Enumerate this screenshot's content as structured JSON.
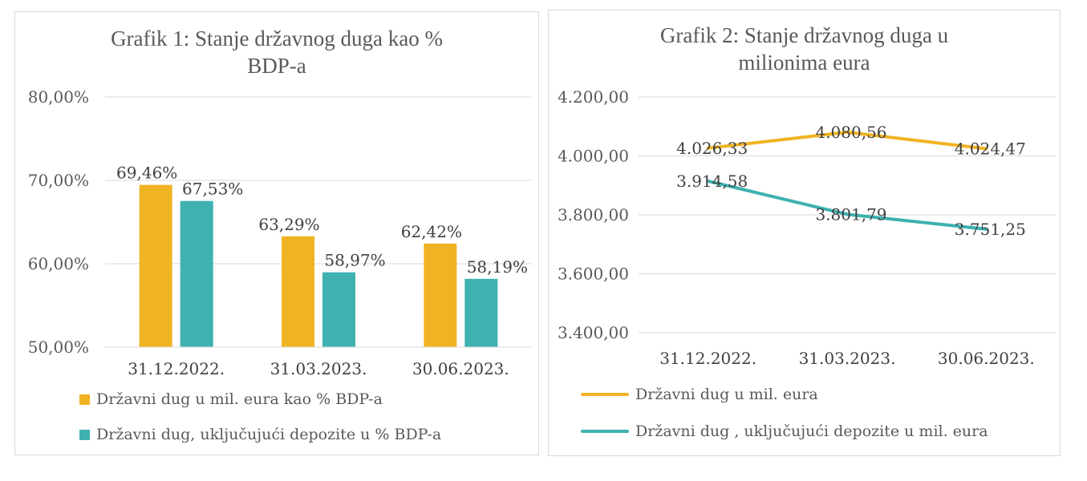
{
  "chart_data": [
    {
      "type": "bar",
      "title": "Grafik 1: Stanje državnog duga kao % BDP-a",
      "title_lines": [
        "Grafik 1: Stanje državnog duga kao %",
        "BDP-a"
      ],
      "categories": [
        "31.12.2022.",
        "31.03.2023.",
        "30.06.2023."
      ],
      "ylim": [
        50,
        80
      ],
      "yticks": [
        50,
        60,
        70,
        80
      ],
      "ytick_labels": [
        "50,00%",
        "60,00%",
        "70,00%",
        "80,00%"
      ],
      "grid": true,
      "legend_position": "bottom",
      "series": [
        {
          "name": "Državni dug u mil. eura kao % BDP-a",
          "values": [
            69.46,
            63.29,
            62.42
          ],
          "labels": [
            "69,46%",
            "63,29%",
            "62,42%"
          ],
          "color": "#F0B323"
        },
        {
          "name": "Državni dug, uključujući depozite u % BDP-a",
          "values": [
            67.53,
            58.97,
            58.19
          ],
          "labels": [
            "67,53%",
            "58,97%",
            "58,19%"
          ],
          "color": "#3EB1B0"
        }
      ]
    },
    {
      "type": "line",
      "title": "Grafik 2: Stanje državnog duga u milionima eura",
      "title_lines": [
        "Grafik 2: Stanje državnog duga u",
        "milionima eura"
      ],
      "categories": [
        "31.12.2022.",
        "31.03.2023.",
        "30.06.2023."
      ],
      "ylim": [
        3400,
        4200
      ],
      "yticks": [
        3400,
        3600,
        3800,
        4000,
        4200
      ],
      "ytick_labels": [
        "3.400,00",
        "3.600,00",
        "3.800,00",
        "4.000,00",
        "4.200,00"
      ],
      "grid": true,
      "legend_position": "bottom",
      "series": [
        {
          "name": "Državni dug u mil. eura",
          "values": [
            4026.33,
            4080.56,
            4024.47
          ],
          "labels": [
            "4.026,33",
            "4.080,56",
            "4.024,47"
          ],
          "color": "#F0B323"
        },
        {
          "name": "Državni dug , uključujući depozite u mil. eura",
          "values": [
            3914.58,
            3801.79,
            3751.25
          ],
          "labels": [
            "3.914,58",
            "3.801,79",
            "3.751,25"
          ],
          "color": "#3EB1B0"
        }
      ]
    }
  ]
}
